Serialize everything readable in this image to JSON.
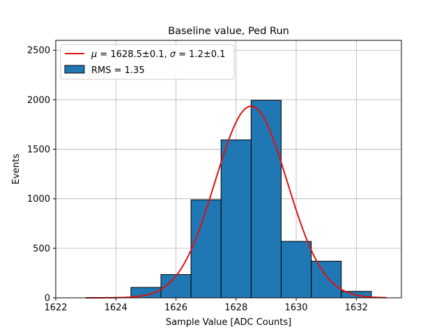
{
  "chart_data": {
    "type": "bar",
    "title": "Baseline value, Ped Run",
    "xlabel": "Sample Value [ADC Counts]",
    "ylabel": "Events",
    "xlim": [
      1622,
      1633.5
    ],
    "ylim": [
      0,
      2600
    ],
    "xticks": [
      1622,
      1624,
      1626,
      1628,
      1630,
      1632
    ],
    "yticks": [
      0,
      500,
      1000,
      1500,
      2000,
      2500
    ],
    "grid": true,
    "legend_position": "top-left",
    "bin_width": 1,
    "bins": [
      {
        "center": 1625,
        "count": 105
      },
      {
        "center": 1626,
        "count": 235
      },
      {
        "center": 1627,
        "count": 990
      },
      {
        "center": 1628,
        "count": 1595
      },
      {
        "center": 1629,
        "count": 1995
      },
      {
        "center": 1630,
        "count": 570
      },
      {
        "center": 1631,
        "count": 370
      },
      {
        "center": 1632,
        "count": 65
      }
    ],
    "series": [
      {
        "name": "RMS = 1.35",
        "type": "histogram",
        "color": "#1f77b4",
        "edgecolor": "#000000"
      },
      {
        "name_prefix": "μ",
        "name_text": " = 1628.5±0.1, ",
        "name_sigma": "σ",
        "name_text2": " = 1.2±0.1",
        "type": "gaussian_fit",
        "color": "#e01010",
        "mu": 1628.5,
        "sigma": 1.2,
        "amplitude": 1935,
        "x_range": [
          1623,
          1633
        ]
      }
    ]
  }
}
